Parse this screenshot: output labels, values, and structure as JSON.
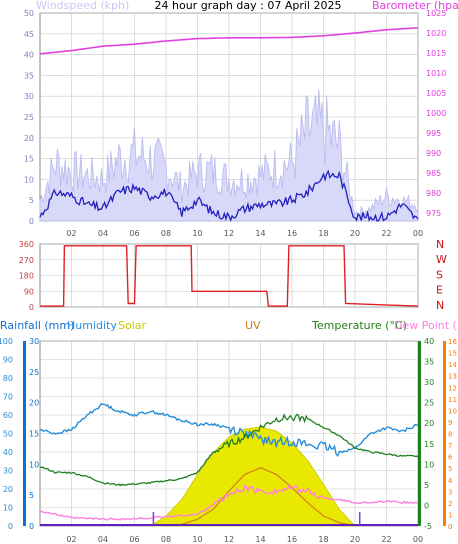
{
  "title": "24 hour graph day : 07 April 2025",
  "colors": {
    "wind_label": "#c8c8f0",
    "barometer": "#e040e0",
    "wind_gust": "#b8b8f0",
    "wind_avg": "#2020c0",
    "winddir": "#e02020",
    "dir_labels": "#d01010",
    "rain": "#1070d0",
    "humidity": "#2a8ed8",
    "solar": "#e8e800",
    "uv": "#d08020",
    "temperature": "#208020",
    "dewpoint": "#ff80e0",
    "dewaxis": "#ff7a00",
    "grid": "#c8c8c8"
  },
  "chart_data": [
    {
      "type": "line",
      "name": "wind-barometer",
      "x_tick_labels": [
        "02",
        "04",
        "06",
        "08",
        "10",
        "12",
        "14",
        "16",
        "18",
        "20",
        "22",
        "00"
      ],
      "left_axis": {
        "label": "Windspeed (kph)",
        "ticks": [
          "50",
          "45",
          "40",
          "35",
          "30",
          "25",
          "20",
          "15",
          "10",
          "5",
          "0"
        ],
        "range": [
          0,
          50
        ]
      },
      "right_axis": {
        "label": "Barometer (hpa)",
        "ticks": [
          "1025",
          "1020",
          "1015",
          "1010",
          "1005",
          "1000",
          "995",
          "990",
          "985",
          "980",
          "975"
        ],
        "range": [
          973,
          1025
        ]
      },
      "series": [
        {
          "name": "Barometer (hpa)",
          "axis": "right",
          "x": [
            0,
            2,
            4,
            6,
            8,
            10,
            12,
            14,
            16,
            18,
            20,
            22,
            24
          ],
          "values": [
            1014.8,
            1015.6,
            1016.7,
            1017.2,
            1018.0,
            1018.6,
            1018.8,
            1018.8,
            1018.9,
            1019.3,
            1020.0,
            1020.8,
            1021.3
          ]
        },
        {
          "name": "Wind gust",
          "axis": "left",
          "x": [
            0,
            1,
            2,
            3,
            4,
            5,
            6,
            7,
            8,
            9,
            10,
            11,
            12,
            13,
            14,
            15,
            16,
            17,
            18,
            19,
            20,
            21,
            22,
            23,
            24
          ],
          "values": [
            5,
            14,
            12,
            11,
            10,
            15,
            16,
            15,
            13,
            8,
            12,
            12,
            10,
            10,
            11,
            13,
            14,
            22,
            22,
            18,
            2,
            3,
            6,
            5,
            4
          ]
        },
        {
          "name": "Wind average",
          "axis": "left",
          "x": [
            0,
            1,
            2,
            3,
            4,
            5,
            6,
            7,
            8,
            9,
            10,
            11,
            12,
            13,
            14,
            15,
            16,
            17,
            18,
            19,
            20,
            21,
            22,
            23,
            24
          ],
          "values": [
            1,
            7,
            6,
            4,
            3,
            7,
            8,
            6,
            7,
            2,
            5,
            2,
            1,
            3,
            4,
            4,
            5,
            7,
            11,
            11,
            1,
            1,
            1,
            4,
            0
          ]
        }
      ]
    },
    {
      "type": "line",
      "name": "wind-direction",
      "y_labels": [
        "360",
        "270",
        "180",
        "90",
        "0"
      ],
      "direction_labels": [
        "N",
        "W",
        "S",
        "E",
        "N"
      ],
      "series": [
        {
          "name": "Wind direction",
          "x": [
            0,
            1.5,
            1.55,
            5.5,
            5.6,
            6.0,
            6.1,
            9.6,
            9.65,
            14.4,
            14.5,
            15.7,
            15.8,
            19.3,
            19.4,
            24
          ],
          "values": [
            5,
            5,
            350,
            350,
            20,
            20,
            350,
            350,
            90,
            90,
            5,
            5,
            350,
            350,
            20,
            5
          ]
        }
      ]
    },
    {
      "type": "line",
      "name": "rain-humidity-solar-uv-temp-dew",
      "labels": [
        "Rainfall (mm)",
        "Humidity",
        "Solar",
        "UV",
        "Temperature (°C)",
        "Dew Point (°C)"
      ],
      "rain_axis": {
        "ticks": [
          "30",
          "25",
          "20",
          "15",
          "10",
          "5",
          "0"
        ],
        "range": [
          0,
          30
        ]
      },
      "humidity_axis": {
        "ticks": [
          "100",
          "90",
          "80",
          "70",
          "60",
          "50",
          "40",
          "30",
          "20",
          "10",
          "0"
        ],
        "range": [
          0,
          100
        ]
      },
      "temperature_axis": {
        "ticks": [
          "40",
          "35",
          "30",
          "25",
          "20",
          "15",
          "10",
          "5",
          "0",
          "-5"
        ],
        "range": [
          -5,
          40
        ]
      },
      "dewpoint_axis": {
        "ticks": [
          "16",
          "15",
          "14",
          "13",
          "12",
          "11",
          "10",
          "9",
          "8",
          "7",
          "6",
          "5",
          "4",
          "3",
          "2",
          "1",
          "0"
        ],
        "range": [
          0,
          16
        ]
      },
      "series": [
        {
          "name": "Humidity",
          "axis": "humidity",
          "x": [
            0,
            1,
            2,
            3,
            4,
            5,
            6,
            7,
            8,
            9,
            10,
            11,
            12,
            13,
            14,
            15,
            16,
            17,
            18,
            19,
            20,
            21,
            22,
            23,
            24
          ],
          "values": [
            52,
            50,
            52,
            60,
            66,
            62,
            60,
            62,
            60,
            57,
            55,
            55,
            53,
            50,
            47,
            45,
            46,
            44,
            43,
            40,
            42,
            50,
            53,
            51,
            55
          ]
        },
        {
          "name": "Temperature (°C)",
          "axis": "temperature",
          "x": [
            0,
            1,
            2,
            3,
            4,
            5,
            6,
            7,
            8,
            9,
            10,
            11,
            12,
            13,
            14,
            15,
            16,
            17,
            18,
            19,
            20,
            21,
            22,
            23,
            24
          ],
          "values": [
            9.5,
            8,
            8,
            7,
            5.5,
            5,
            5.2,
            5.5,
            6,
            6.5,
            8,
            13,
            15,
            16.5,
            19,
            21,
            21.5,
            21,
            19,
            17,
            14,
            13,
            12.5,
            12,
            12
          ]
        },
        {
          "name": "Dew Point (°C)",
          "axis": "dewpoint",
          "x": [
            0,
            2,
            4,
            6,
            8,
            10,
            12,
            13,
            14,
            15,
            16,
            17,
            18,
            19,
            20,
            22,
            24
          ],
          "values": [
            1.3,
            0.7,
            0.6,
            0.6,
            0.8,
            1.0,
            2.7,
            3.3,
            3.0,
            3.0,
            3.3,
            3.0,
            2.4,
            2.3,
            2.0,
            2.1,
            2.0
          ]
        },
        {
          "name": "Solar",
          "axis": "none",
          "x": [
            7,
            8,
            9,
            10,
            11,
            12,
            13,
            14,
            15,
            16,
            17,
            18,
            19,
            20
          ],
          "values": [
            0,
            0.1,
            0.27,
            0.52,
            0.74,
            0.9,
            0.98,
            1.0,
            0.96,
            0.84,
            0.66,
            0.42,
            0.17,
            0
          ]
        },
        {
          "name": "UV",
          "axis": "none",
          "x": [
            8,
            9,
            10,
            11,
            12,
            13,
            14,
            15,
            16,
            17,
            18,
            19,
            20
          ],
          "values": [
            0,
            0.02,
            0.08,
            0.2,
            0.42,
            0.62,
            0.7,
            0.62,
            0.46,
            0.28,
            0.12,
            0.04,
            0
          ]
        }
      ]
    }
  ]
}
